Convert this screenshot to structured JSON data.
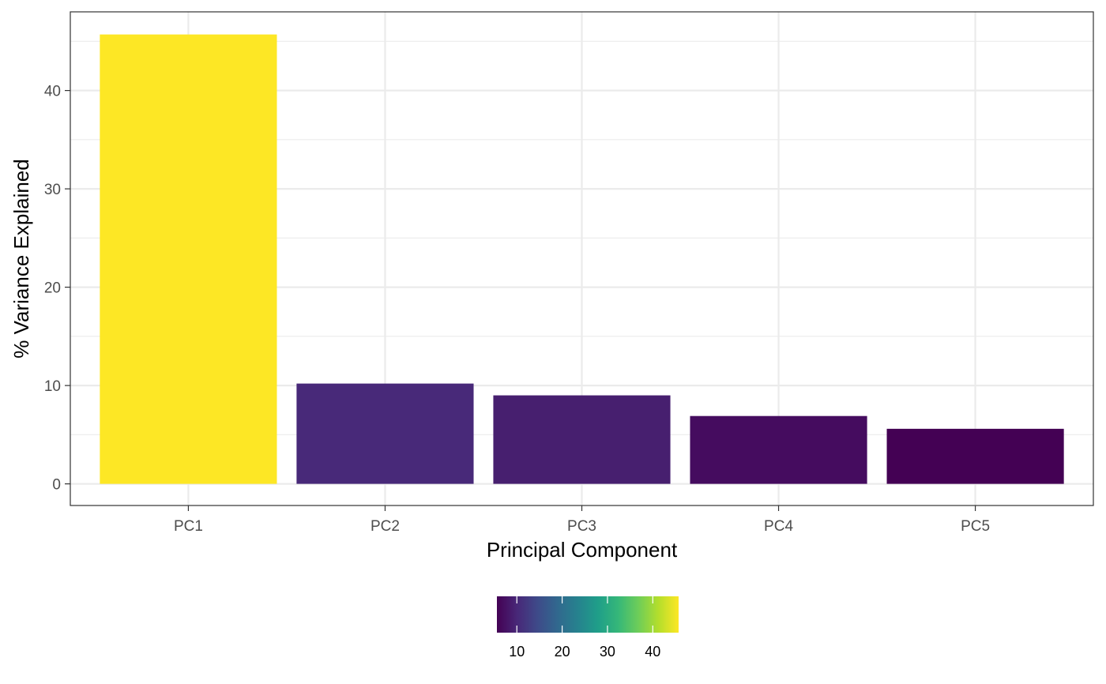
{
  "chart_data": {
    "type": "bar",
    "xlabel": "Principal Component",
    "ylabel": "% Variance Explained",
    "categories": [
      "PC1",
      "PC2",
      "PC3",
      "PC4",
      "PC5"
    ],
    "values": [
      45.7,
      10.2,
      9.0,
      6.9,
      5.6
    ],
    "ylim": [
      -2.2,
      48.0
    ],
    "yticks": [
      0,
      10,
      20,
      30,
      40
    ],
    "ytick_labels": [
      "0",
      "10",
      "20",
      "30",
      "40"
    ],
    "grid": true,
    "legend": {
      "position": "bottom",
      "type": "colorbar",
      "range": [
        5.6,
        45.7
      ],
      "ticks": [
        10,
        20,
        30,
        40
      ],
      "tick_labels": [
        "10",
        "20",
        "30",
        "40"
      ],
      "palette": [
        "#440154",
        "#482878",
        "#3E4A89",
        "#31688E",
        "#26828E",
        "#1F9E89",
        "#35B779",
        "#6DCD59",
        "#B4DE2C",
        "#FDE725"
      ]
    },
    "colors": {
      "panel_border": "#333333",
      "grid": "#ebebeb",
      "background": "#ffffff"
    }
  }
}
